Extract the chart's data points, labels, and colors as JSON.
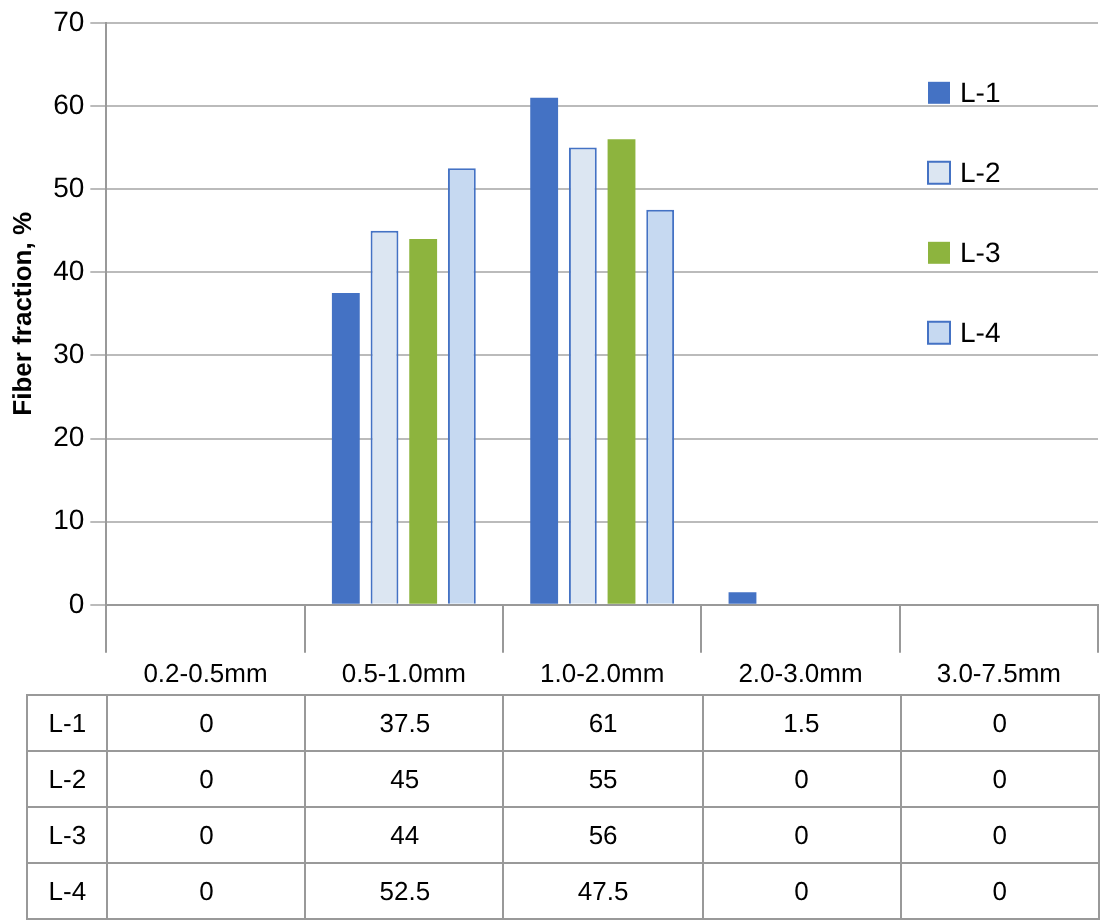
{
  "chart_data": {
    "type": "bar",
    "ylabel": "Fiber fraction, %",
    "categories": [
      "0.2-0.5mm",
      "0.5-1.0mm",
      "1.0-2.0mm",
      "2.0-3.0mm",
      "3.0-7.5mm"
    ],
    "series": [
      {
        "name": "L-1",
        "color": "#4472c4",
        "values": [
          0,
          37.5,
          61,
          1.5,
          0
        ]
      },
      {
        "name": "L-2",
        "color": "#dce6f2",
        "values": [
          0,
          45,
          55,
          0,
          0
        ]
      },
      {
        "name": "L-3",
        "color": "#8db43e",
        "values": [
          0,
          44,
          56,
          0,
          0
        ]
      },
      {
        "name": "L-4",
        "color": "#c6d9f1",
        "values": [
          0,
          52.5,
          47.5,
          0,
          0
        ]
      }
    ],
    "ylim": [
      0,
      70
    ],
    "yticks": [
      0,
      10,
      20,
      30,
      40,
      50,
      60,
      70
    ],
    "grid": "y",
    "legend": "right",
    "data_labels": true
  }
}
